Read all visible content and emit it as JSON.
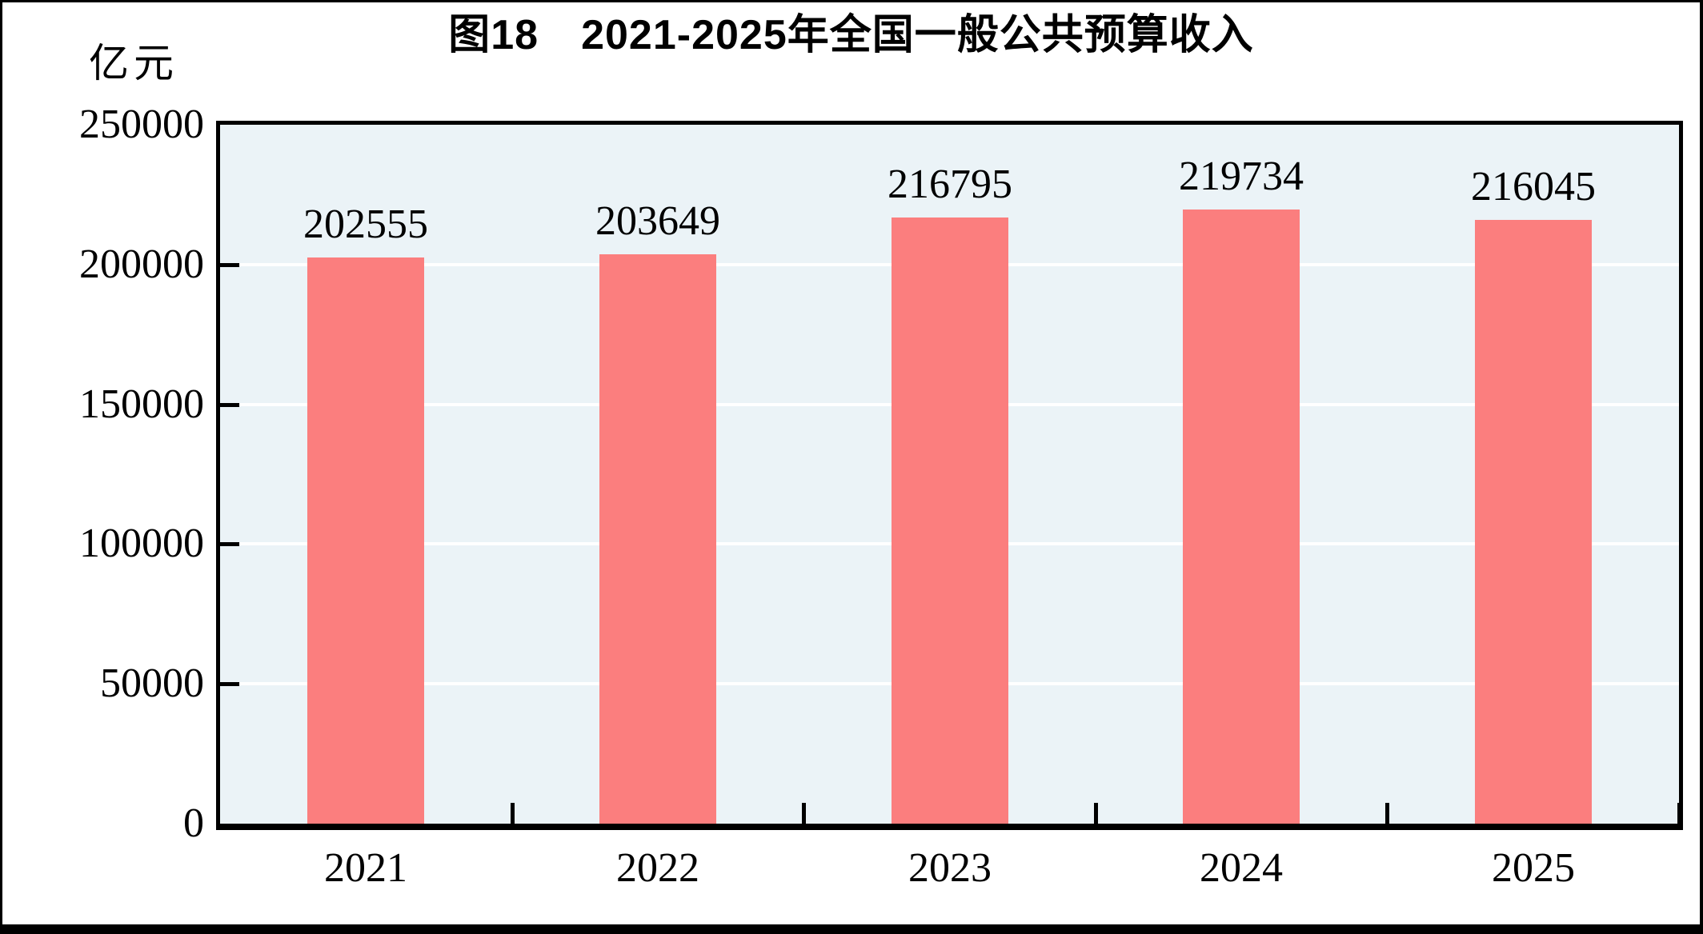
{
  "figure": {
    "title": "图18　2021-2025年全国一般公共预算收入",
    "unit_label": "亿元"
  },
  "colors": {
    "bar": "#FB7E7E",
    "plot_background": "#EBF3F7",
    "gridline": "#FFFFFF",
    "axis": "#000000",
    "text": "#000000",
    "page_background": "#FFFFFF"
  },
  "chart_data": {
    "type": "bar",
    "title": "图18　2021-2025年全国一般公共预算收入",
    "categories": [
      "2021",
      "2022",
      "2023",
      "2024",
      "2025"
    ],
    "values": [
      202555,
      203649,
      216795,
      219734,
      216045
    ],
    "bar_value_labels": [
      "202555",
      "203649",
      "216795",
      "219734",
      "216045"
    ],
    "xlabel": "",
    "ylabel": "亿元",
    "ylim": [
      0,
      250000
    ],
    "yticks": [
      0,
      50000,
      100000,
      150000,
      200000,
      250000
    ],
    "ytick_labels": [
      "0",
      "50000",
      "100000",
      "150000",
      "200000",
      "250000"
    ],
    "grid": "horizontal",
    "legend": "none"
  }
}
